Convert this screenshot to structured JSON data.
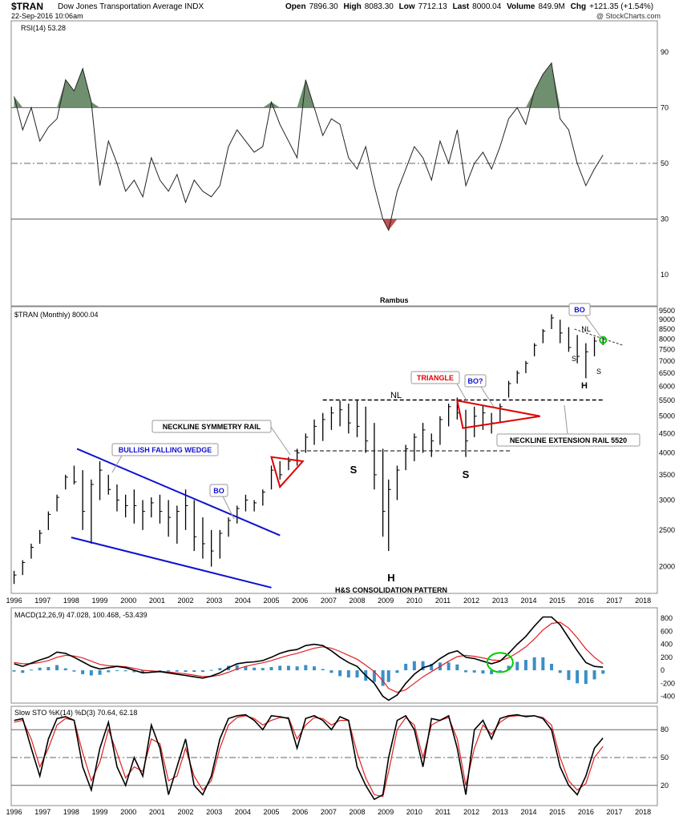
{
  "header": {
    "symbol": "$TRAN",
    "name": "Dow Jones Transportation Average",
    "exchange": "INDX",
    "date": "22-Sep-2016 10:06am",
    "credit": "@ StockCharts.com",
    "open_label": "Open",
    "open": "7896.30",
    "high_label": "High",
    "high": "8083.30",
    "low_label": "Low",
    "low": "7712.13",
    "last_label": "Last",
    "last": "8000.04",
    "volume_label": "Volume",
    "volume": "849.9M",
    "chg_label": "Chg",
    "chg": "+121.35 (+1.54%)"
  },
  "colors": {
    "price_bars": "#000000",
    "rsi_fill": "#6f8f6f",
    "rsi_low_fill": "#c05050",
    "macd": "#000000",
    "signal": "#e02020",
    "histogram": "#3a8fc8",
    "wedge": "#1010d0",
    "triangle": "#e00000",
    "bo_circle": "#00cc00"
  },
  "chart_data": [
    {
      "type": "line",
      "panel": "rsi",
      "title": "RSI(14) 53.28",
      "yticks": [
        10,
        30,
        50,
        70,
        90
      ],
      "ylim": [
        0,
        100
      ],
      "overbought": 70,
      "oversold": 30,
      "x": [
        1996.0,
        1996.3,
        1996.6,
        1996.9,
        1997.2,
        1997.5,
        1997.8,
        1998.1,
        1998.4,
        1998.7,
        1999.0,
        1999.3,
        1999.6,
        1999.9,
        2000.2,
        2000.5,
        2000.8,
        2001.1,
        2001.4,
        2001.7,
        2002.0,
        2002.3,
        2002.6,
        2002.9,
        2003.2,
        2003.5,
        2003.8,
        2004.1,
        2004.4,
        2004.7,
        2005.0,
        2005.3,
        2005.6,
        2005.9,
        2006.2,
        2006.5,
        2006.8,
        2007.1,
        2007.4,
        2007.7,
        2008.0,
        2008.3,
        2008.6,
        2008.9,
        2009.1,
        2009.4,
        2009.7,
        2010.0,
        2010.3,
        2010.6,
        2010.9,
        2011.2,
        2011.5,
        2011.8,
        2012.1,
        2012.4,
        2012.7,
        2013.0,
        2013.3,
        2013.6,
        2013.9,
        2014.2,
        2014.5,
        2014.8,
        2015.1,
        2015.4,
        2015.7,
        2016.0,
        2016.3,
        2016.6
      ],
      "values": [
        74,
        62,
        70,
        58,
        63,
        66,
        80,
        76,
        84,
        72,
        42,
        58,
        50,
        40,
        44,
        38,
        52,
        44,
        40,
        46,
        36,
        44,
        40,
        38,
        42,
        56,
        62,
        58,
        54,
        56,
        72,
        64,
        58,
        52,
        80,
        70,
        60,
        66,
        64,
        52,
        48,
        56,
        42,
        30,
        26,
        40,
        48,
        56,
        52,
        44,
        58,
        50,
        62,
        42,
        50,
        54,
        48,
        56,
        66,
        70,
        64,
        76,
        82,
        86,
        66,
        62,
        50,
        42,
        48,
        53
      ]
    },
    {
      "type": "bar",
      "panel": "price",
      "title": "$TRAN (Monthly) 8000.04",
      "scale": "log",
      "yticks": [
        2000,
        2500,
        3000,
        3500,
        4000,
        4500,
        5000,
        5500,
        6000,
        6500,
        7000,
        7500,
        8000,
        8500,
        9000,
        9500
      ],
      "ylim": [
        1750,
        9600
      ],
      "xlabel_ticks": [
        "1996",
        "1997",
        "1998",
        "1999",
        "2000",
        "2001",
        "2002",
        "2003",
        "2004",
        "2005",
        "2006",
        "2007",
        "2008",
        "2009",
        "2010",
        "2011",
        "2012",
        "2013",
        "2014",
        "2015",
        "2016",
        "2017",
        "2018"
      ],
      "x": [
        1996.0,
        1996.3,
        1996.6,
        1996.9,
        1997.2,
        1997.5,
        1997.8,
        1998.1,
        1998.4,
        1998.7,
        1999.0,
        1999.3,
        1999.6,
        1999.9,
        2000.2,
        2000.5,
        2000.8,
        2001.1,
        2001.4,
        2001.7,
        2002.0,
        2002.3,
        2002.6,
        2002.9,
        2003.2,
        2003.5,
        2003.8,
        2004.1,
        2004.4,
        2004.7,
        2005.0,
        2005.3,
        2005.6,
        2005.9,
        2006.2,
        2006.5,
        2006.8,
        2007.1,
        2007.4,
        2007.7,
        2008.0,
        2008.3,
        2008.6,
        2008.9,
        2009.1,
        2009.4,
        2009.7,
        2010.0,
        2010.3,
        2010.6,
        2010.9,
        2011.2,
        2011.5,
        2011.8,
        2012.1,
        2012.4,
        2012.7,
        2013.0,
        2013.3,
        2013.6,
        2013.9,
        2014.2,
        2014.5,
        2014.8,
        2015.1,
        2015.4,
        2015.7,
        2016.0,
        2016.3,
        2016.6
      ],
      "high": [
        1950,
        2080,
        2300,
        2500,
        2800,
        3100,
        3500,
        3700,
        3600,
        3400,
        3800,
        3500,
        3300,
        3100,
        3200,
        3000,
        3050,
        3100,
        3000,
        2900,
        3200,
        3000,
        2700,
        2500,
        2500,
        2700,
        2900,
        3100,
        3000,
        3200,
        3700,
        3800,
        3900,
        4100,
        4500,
        4900,
        5100,
        5300,
        5500,
        5400,
        5500,
        5300,
        4800,
        4100,
        3400,
        3700,
        4200,
        4500,
        4800,
        4500,
        5000,
        5400,
        5600,
        5200,
        5300,
        5350,
        5100,
        5400,
        6200,
        6600,
        7000,
        7800,
        8500,
        9300,
        9000,
        8600,
        8200,
        7800,
        8100,
        8083
      ],
      "low": [
        1800,
        1900,
        2100,
        2300,
        2500,
        2800,
        3200,
        3300,
        2500,
        2300,
        3000,
        3100,
        2800,
        2700,
        2600,
        2500,
        2700,
        2600,
        2400,
        2300,
        2500,
        2200,
        2100,
        2000,
        2100,
        2400,
        2600,
        2800,
        2800,
        2900,
        3200,
        3400,
        3600,
        3700,
        4000,
        4200,
        4300,
        4600,
        4700,
        4500,
        4400,
        4000,
        3200,
        2400,
        2200,
        3000,
        3600,
        3800,
        4000,
        3900,
        4200,
        4700,
        4900,
        3900,
        4400,
        4600,
        4500,
        4800,
        5600,
        6100,
        6500,
        7200,
        7800,
        8500,
        7800,
        7400,
        6900,
        6300,
        7200,
        7712
      ],
      "close": [
        1900,
        2050,
        2250,
        2450,
        2750,
        3050,
        3450,
        3350,
        2800,
        3300,
        3600,
        3200,
        3000,
        2900,
        2900,
        2800,
        2950,
        2800,
        2700,
        2800,
        2900,
        2400,
        2300,
        2200,
        2450,
        2650,
        2850,
        3000,
        2950,
        3150,
        3600,
        3500,
        3800,
        4000,
        4400,
        4700,
        4900,
        5100,
        5200,
        4800,
        4700,
        4300,
        3500,
        2800,
        3200,
        3600,
        4100,
        4400,
        4600,
        4300,
        4900,
        5300,
        5100,
        4300,
        5000,
        5100,
        4800,
        5300,
        6100,
        6500,
        6900,
        7700,
        8400,
        9100,
        8300,
        7600,
        7200,
        7400,
        7900,
        8000
      ]
    },
    {
      "type": "line",
      "panel": "macd",
      "title": "MACD(12,26,9) 47.028, 100.468, -53.439",
      "yticks": [
        -400,
        -200,
        0,
        200,
        400,
        600,
        800
      ],
      "ylim": [
        -480,
        900
      ],
      "series": [
        {
          "name": "MACD(12,26,9)",
          "values": [
            100,
            60,
            110,
            160,
            200,
            280,
            260,
            200,
            130,
            60,
            20,
            40,
            60,
            40,
            0,
            -40,
            -30,
            -20,
            -40,
            -60,
            -80,
            -100,
            -120,
            -90,
            -40,
            40,
            100,
            120,
            130,
            150,
            200,
            260,
            300,
            320,
            380,
            400,
            380,
            300,
            200,
            120,
            60,
            -80,
            -200,
            -400,
            -460,
            -380,
            -200,
            -60,
            40,
            80,
            180,
            260,
            300,
            200,
            180,
            140,
            100,
            140,
            260,
            400,
            520,
            680,
            820,
            820,
            700,
            500,
            300,
            120,
            60,
            47
          ]
        },
        {
          "name": "",
          "values": [
            120,
            100,
            100,
            120,
            150,
            200,
            230,
            220,
            190,
            140,
            90,
            70,
            65,
            55,
            30,
            0,
            -10,
            -15,
            -25,
            -40,
            -55,
            -75,
            -95,
            -95,
            -75,
            -30,
            20,
            60,
            90,
            115,
            150,
            190,
            230,
            260,
            300,
            340,
            360,
            340,
            290,
            230,
            170,
            80,
            -20,
            -160,
            -280,
            -340,
            -300,
            -200,
            -100,
            -20,
            60,
            140,
            210,
            230,
            215,
            190,
            160,
            150,
            190,
            270,
            360,
            480,
            620,
            720,
            740,
            650,
            500,
            330,
            200,
            100
          ]
        }
      ],
      "histogram": [
        -20,
        -40,
        10,
        40,
        50,
        80,
        30,
        -20,
        -60,
        -80,
        -70,
        -30,
        -5,
        -15,
        -30,
        -40,
        -20,
        -5,
        -15,
        -20,
        -25,
        -25,
        -25,
        5,
        35,
        70,
        80,
        60,
        40,
        35,
        50,
        70,
        70,
        60,
        80,
        60,
        20,
        -40,
        -90,
        -110,
        -110,
        -160,
        -180,
        -240,
        -180,
        -40,
        100,
        140,
        140,
        100,
        120,
        120,
        90,
        -30,
        -35,
        -50,
        -60,
        -10,
        70,
        130,
        160,
        200,
        200,
        100,
        -40,
        -150,
        -200,
        -210,
        -140,
        -53
      ]
    },
    {
      "type": "line",
      "panel": "stoch",
      "title": "Slow STO %K(14) %D(3) 70.64, 62.18",
      "yticks": [
        20,
        50,
        80
      ],
      "ylim": [
        0,
        100
      ],
      "series": [
        {
          "name": "%K(14)",
          "values": [
            90,
            92,
            60,
            30,
            70,
            92,
            94,
            90,
            40,
            15,
            60,
            88,
            40,
            20,
            50,
            30,
            85,
            60,
            10,
            40,
            70,
            20,
            10,
            30,
            70,
            92,
            95,
            96,
            90,
            80,
            95,
            94,
            92,
            60,
            92,
            95,
            90,
            80,
            94,
            90,
            40,
            20,
            5,
            10,
            50,
            90,
            95,
            80,
            40,
            92,
            90,
            95,
            60,
            10,
            80,
            90,
            70,
            92,
            95,
            96,
            94,
            95,
            92,
            80,
            40,
            20,
            10,
            30,
            60,
            71
          ]
        },
        {
          "name": "%D(3)",
          "values": [
            88,
            90,
            70,
            40,
            60,
            85,
            92,
            90,
            55,
            25,
            45,
            80,
            55,
            28,
            40,
            35,
            70,
            65,
            25,
            30,
            60,
            30,
            15,
            25,
            60,
            85,
            93,
            95,
            92,
            85,
            90,
            93,
            93,
            70,
            85,
            93,
            92,
            85,
            90,
            90,
            55,
            28,
            10,
            8,
            35,
            80,
            93,
            85,
            50,
            85,
            90,
            93,
            70,
            20,
            60,
            85,
            75,
            88,
            94,
            95,
            95,
            95,
            93,
            85,
            50,
            25,
            15,
            22,
            50,
            62
          ]
        }
      ]
    }
  ],
  "annotations": {
    "rambus": "Rambus",
    "bullish_falling_wedge": "BULLISH FALLING WEDGE",
    "bo1": "BO",
    "neckline_symmetry_rail": "NECKLINE SYMMETRY RAIL",
    "nl1": "NL",
    "s1": "S",
    "h1": "H",
    "s2": "S",
    "triangle": "TRIANGLE",
    "bo_question": "BO?",
    "neckline_extension_rail": "NECKLINE EXTENSION RAIL 5520",
    "hs_consolidation": "H&S CONSOLIDATION PATTERN",
    "bo2": "BO",
    "nl2": "NL",
    "s3": "S",
    "s4": "S",
    "h2": "H"
  }
}
